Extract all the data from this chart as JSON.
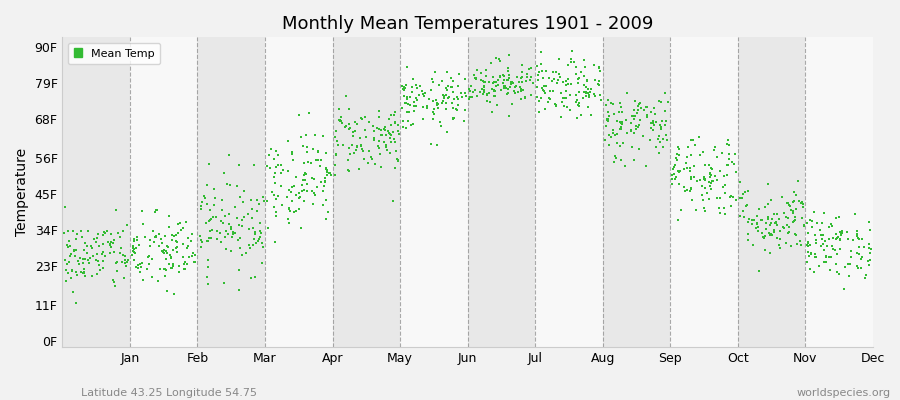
{
  "title": "Monthly Mean Temperatures 1901 - 2009",
  "ylabel": "Temperature",
  "xlabel_bottom_left": "Latitude 43.25 Longitude 54.75",
  "xlabel_bottom_right": "worldspecies.org",
  "legend_label": "Mean Temp",
  "yticks": [
    0,
    11,
    23,
    34,
    45,
    56,
    68,
    79,
    90
  ],
  "ytick_labels": [
    "0F",
    "11F",
    "23F",
    "34F",
    "45F",
    "56F",
    "68F",
    "79F",
    "90F"
  ],
  "months": [
    "Jan",
    "Feb",
    "Mar",
    "Apr",
    "May",
    "Jun",
    "Jul",
    "Aug",
    "Sep",
    "Oct",
    "Nov",
    "Dec"
  ],
  "dot_color": "#33bb33",
  "bg_color": "#f2f2f2",
  "plot_bg_color": "#ffffff",
  "band_colors": [
    "#e8e8e8",
    "#f8f8f8"
  ],
  "n_years": 109,
  "monthly_means": [
    26.0,
    27.0,
    36.0,
    50.0,
    62.0,
    73.0,
    79.0,
    77.0,
    66.0,
    51.0,
    37.0,
    29.0
  ],
  "monthly_stds": [
    5.5,
    6.0,
    7.5,
    7.5,
    5.5,
    4.5,
    3.5,
    4.5,
    5.5,
    6.5,
    5.5,
    5.0
  ]
}
